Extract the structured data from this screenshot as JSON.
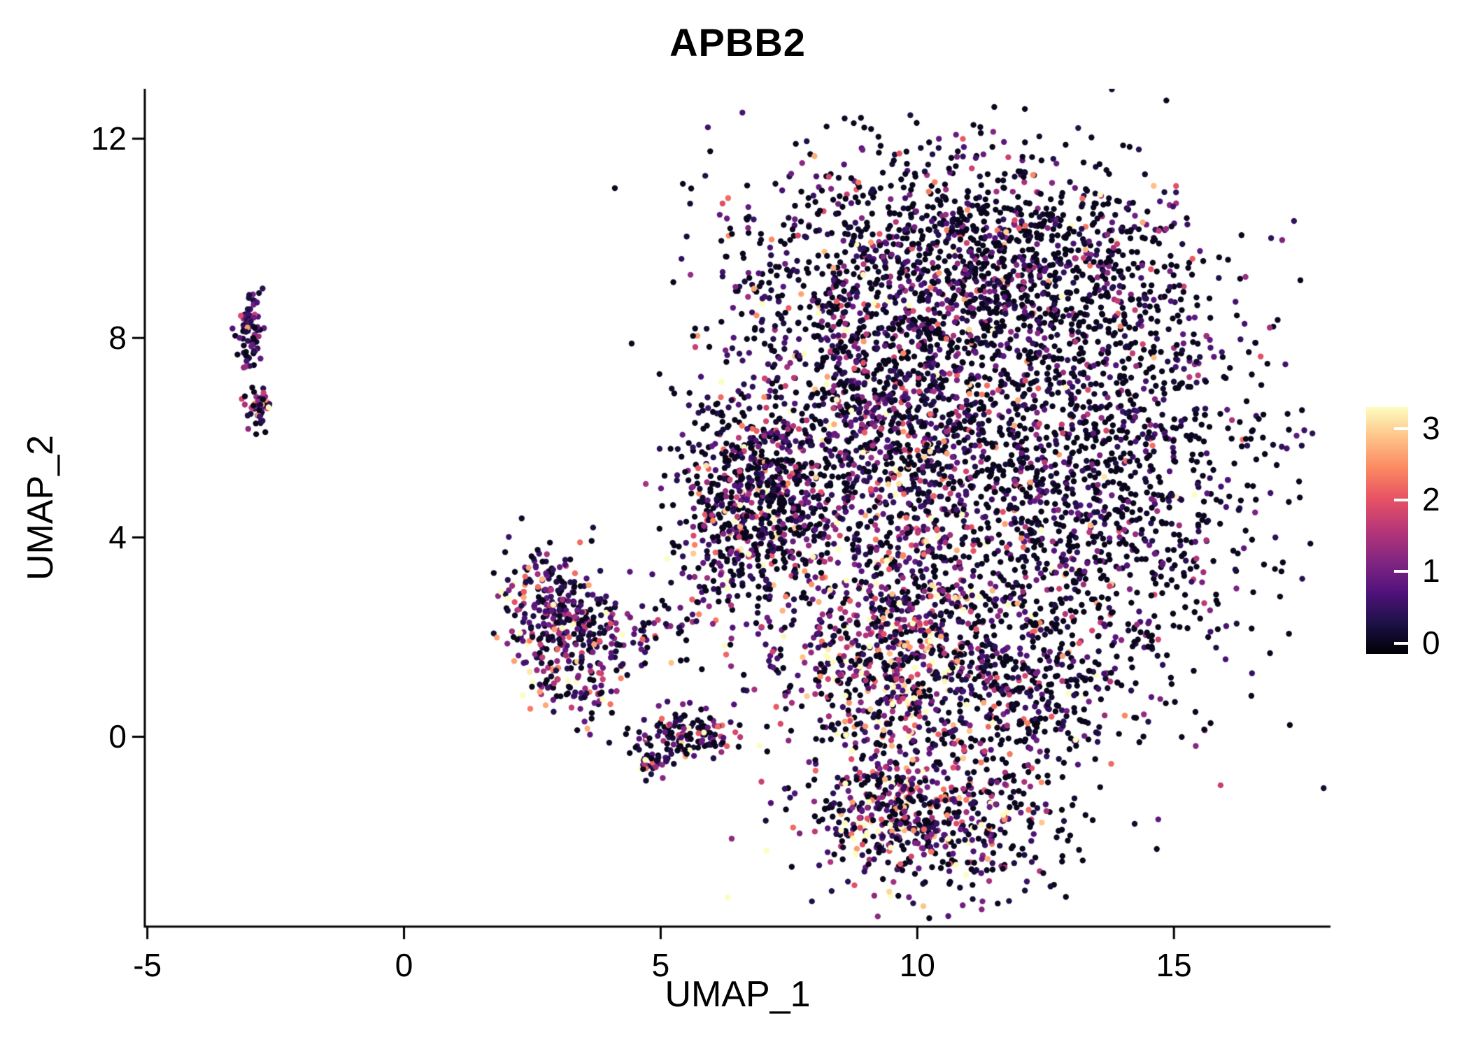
{
  "chart_data": {
    "type": "scatter",
    "title": "APBB2",
    "xlabel": "UMAP_1",
    "ylabel": "UMAP_2",
    "xlim": [
      -5.05,
      18.05
    ],
    "ylim": [
      -3.81,
      13.0
    ],
    "x_ticks": [
      -5,
      0,
      5,
      10,
      15
    ],
    "y_ticks": [
      0,
      4,
      8,
      12
    ],
    "grid": false,
    "point_radius": 4.2,
    "seed": 1337,
    "legend": {
      "position": "right",
      "ticks": [
        0,
        1,
        2,
        3
      ],
      "vmin": 0,
      "vmax": 3.3,
      "bar_range": [
        -0.15,
        3.3
      ],
      "colormap": "magma",
      "stops": [
        "#000004",
        "#1D1147",
        "#51127C",
        "#822681",
        "#B63679",
        "#E65164",
        "#FB8861",
        "#FEC287",
        "#FCFDBF"
      ]
    },
    "clusters": [
      {
        "name": "left-islet-upper",
        "cx": -3.0,
        "cy": 8.1,
        "sx": 0.13,
        "sy": 0.38,
        "n": 75,
        "zero_frac": 0.18,
        "expr_mean": 0.9
      },
      {
        "name": "left-islet-lower",
        "cx": -2.82,
        "cy": 6.55,
        "sx": 0.12,
        "sy": 0.28,
        "n": 45,
        "zero_frac": 0.18,
        "expr_mean": 0.9
      },
      {
        "name": "mid-cluster-core",
        "cx": 2.95,
        "cy": 2.5,
        "sx": 0.5,
        "sy": 0.55,
        "n": 280,
        "zero_frac": 0.15,
        "expr_mean": 1.0
      },
      {
        "name": "mid-cluster-tail",
        "cx": 4.3,
        "cy": 2.0,
        "sx": 0.75,
        "sy": 0.3,
        "n": 110,
        "zero_frac": 0.25,
        "expr_mean": 0.9
      },
      {
        "name": "mid-cluster-lower",
        "cx": 3.3,
        "cy": 1.05,
        "sx": 0.5,
        "sy": 0.35,
        "n": 90,
        "zero_frac": 0.15,
        "expr_mean": 1.3
      },
      {
        "name": "small-cluster",
        "cx": 5.45,
        "cy": 0.05,
        "sx": 0.45,
        "sy": 0.28,
        "n": 140,
        "zero_frac": 0.25,
        "expr_mean": 1.0
      },
      {
        "name": "small-cluster-spur",
        "cx": 4.88,
        "cy": -0.5,
        "sx": 0.16,
        "sy": 0.18,
        "n": 35,
        "zero_frac": 0.15,
        "expr_mean": 1.6
      },
      {
        "name": "main-top",
        "cx": 10.4,
        "cy": 9.9,
        "sx": 1.9,
        "sy": 1.05,
        "n": 850,
        "zero_frac": 0.5,
        "expr_mean": 0.75
      },
      {
        "name": "main-upper-mid",
        "cx": 9.2,
        "cy": 7.4,
        "sx": 1.5,
        "sy": 1.2,
        "n": 750,
        "zero_frac": 0.35,
        "expr_mean": 0.95
      },
      {
        "name": "main-left-arm",
        "cx": 6.8,
        "cy": 4.9,
        "sx": 0.75,
        "sy": 0.95,
        "n": 600,
        "zero_frac": 0.4,
        "expr_mean": 0.85
      },
      {
        "name": "main-center",
        "cx": 10.0,
        "cy": 4.9,
        "sx": 1.7,
        "sy": 1.5,
        "n": 950,
        "zero_frac": 0.35,
        "expr_mean": 1.0
      },
      {
        "name": "main-right",
        "cx": 13.9,
        "cy": 5.4,
        "sx": 1.5,
        "sy": 2.0,
        "n": 1050,
        "zero_frac": 0.55,
        "expr_mean": 0.65
      },
      {
        "name": "main-right-top",
        "cx": 12.9,
        "cy": 8.9,
        "sx": 1.3,
        "sy": 1.0,
        "n": 450,
        "zero_frac": 0.55,
        "expr_mean": 0.65
      },
      {
        "name": "main-lower-hotspot",
        "cx": 9.6,
        "cy": 1.5,
        "sx": 1.3,
        "sy": 1.2,
        "n": 750,
        "zero_frac": 0.18,
        "expr_mean": 1.5
      },
      {
        "name": "main-lower-right",
        "cx": 11.9,
        "cy": 1.2,
        "sx": 1.2,
        "sy": 1.0,
        "n": 420,
        "zero_frac": 0.45,
        "expr_mean": 0.9
      },
      {
        "name": "bottom-lobe",
        "cx": 10.3,
        "cy": -1.7,
        "sx": 1.25,
        "sy": 0.75,
        "n": 480,
        "zero_frac": 0.35,
        "expr_mean": 1.1
      },
      {
        "name": "bottom-lobe-hot",
        "cx": 9.2,
        "cy": -1.3,
        "sx": 0.5,
        "sy": 0.6,
        "n": 140,
        "zero_frac": 0.15,
        "expr_mean": 1.6
      },
      {
        "name": "bridge-sparse",
        "cx": 6.3,
        "cy": 3.3,
        "sx": 0.9,
        "sy": 0.7,
        "n": 70,
        "zero_frac": 0.4,
        "expr_mean": 0.9
      }
    ]
  }
}
